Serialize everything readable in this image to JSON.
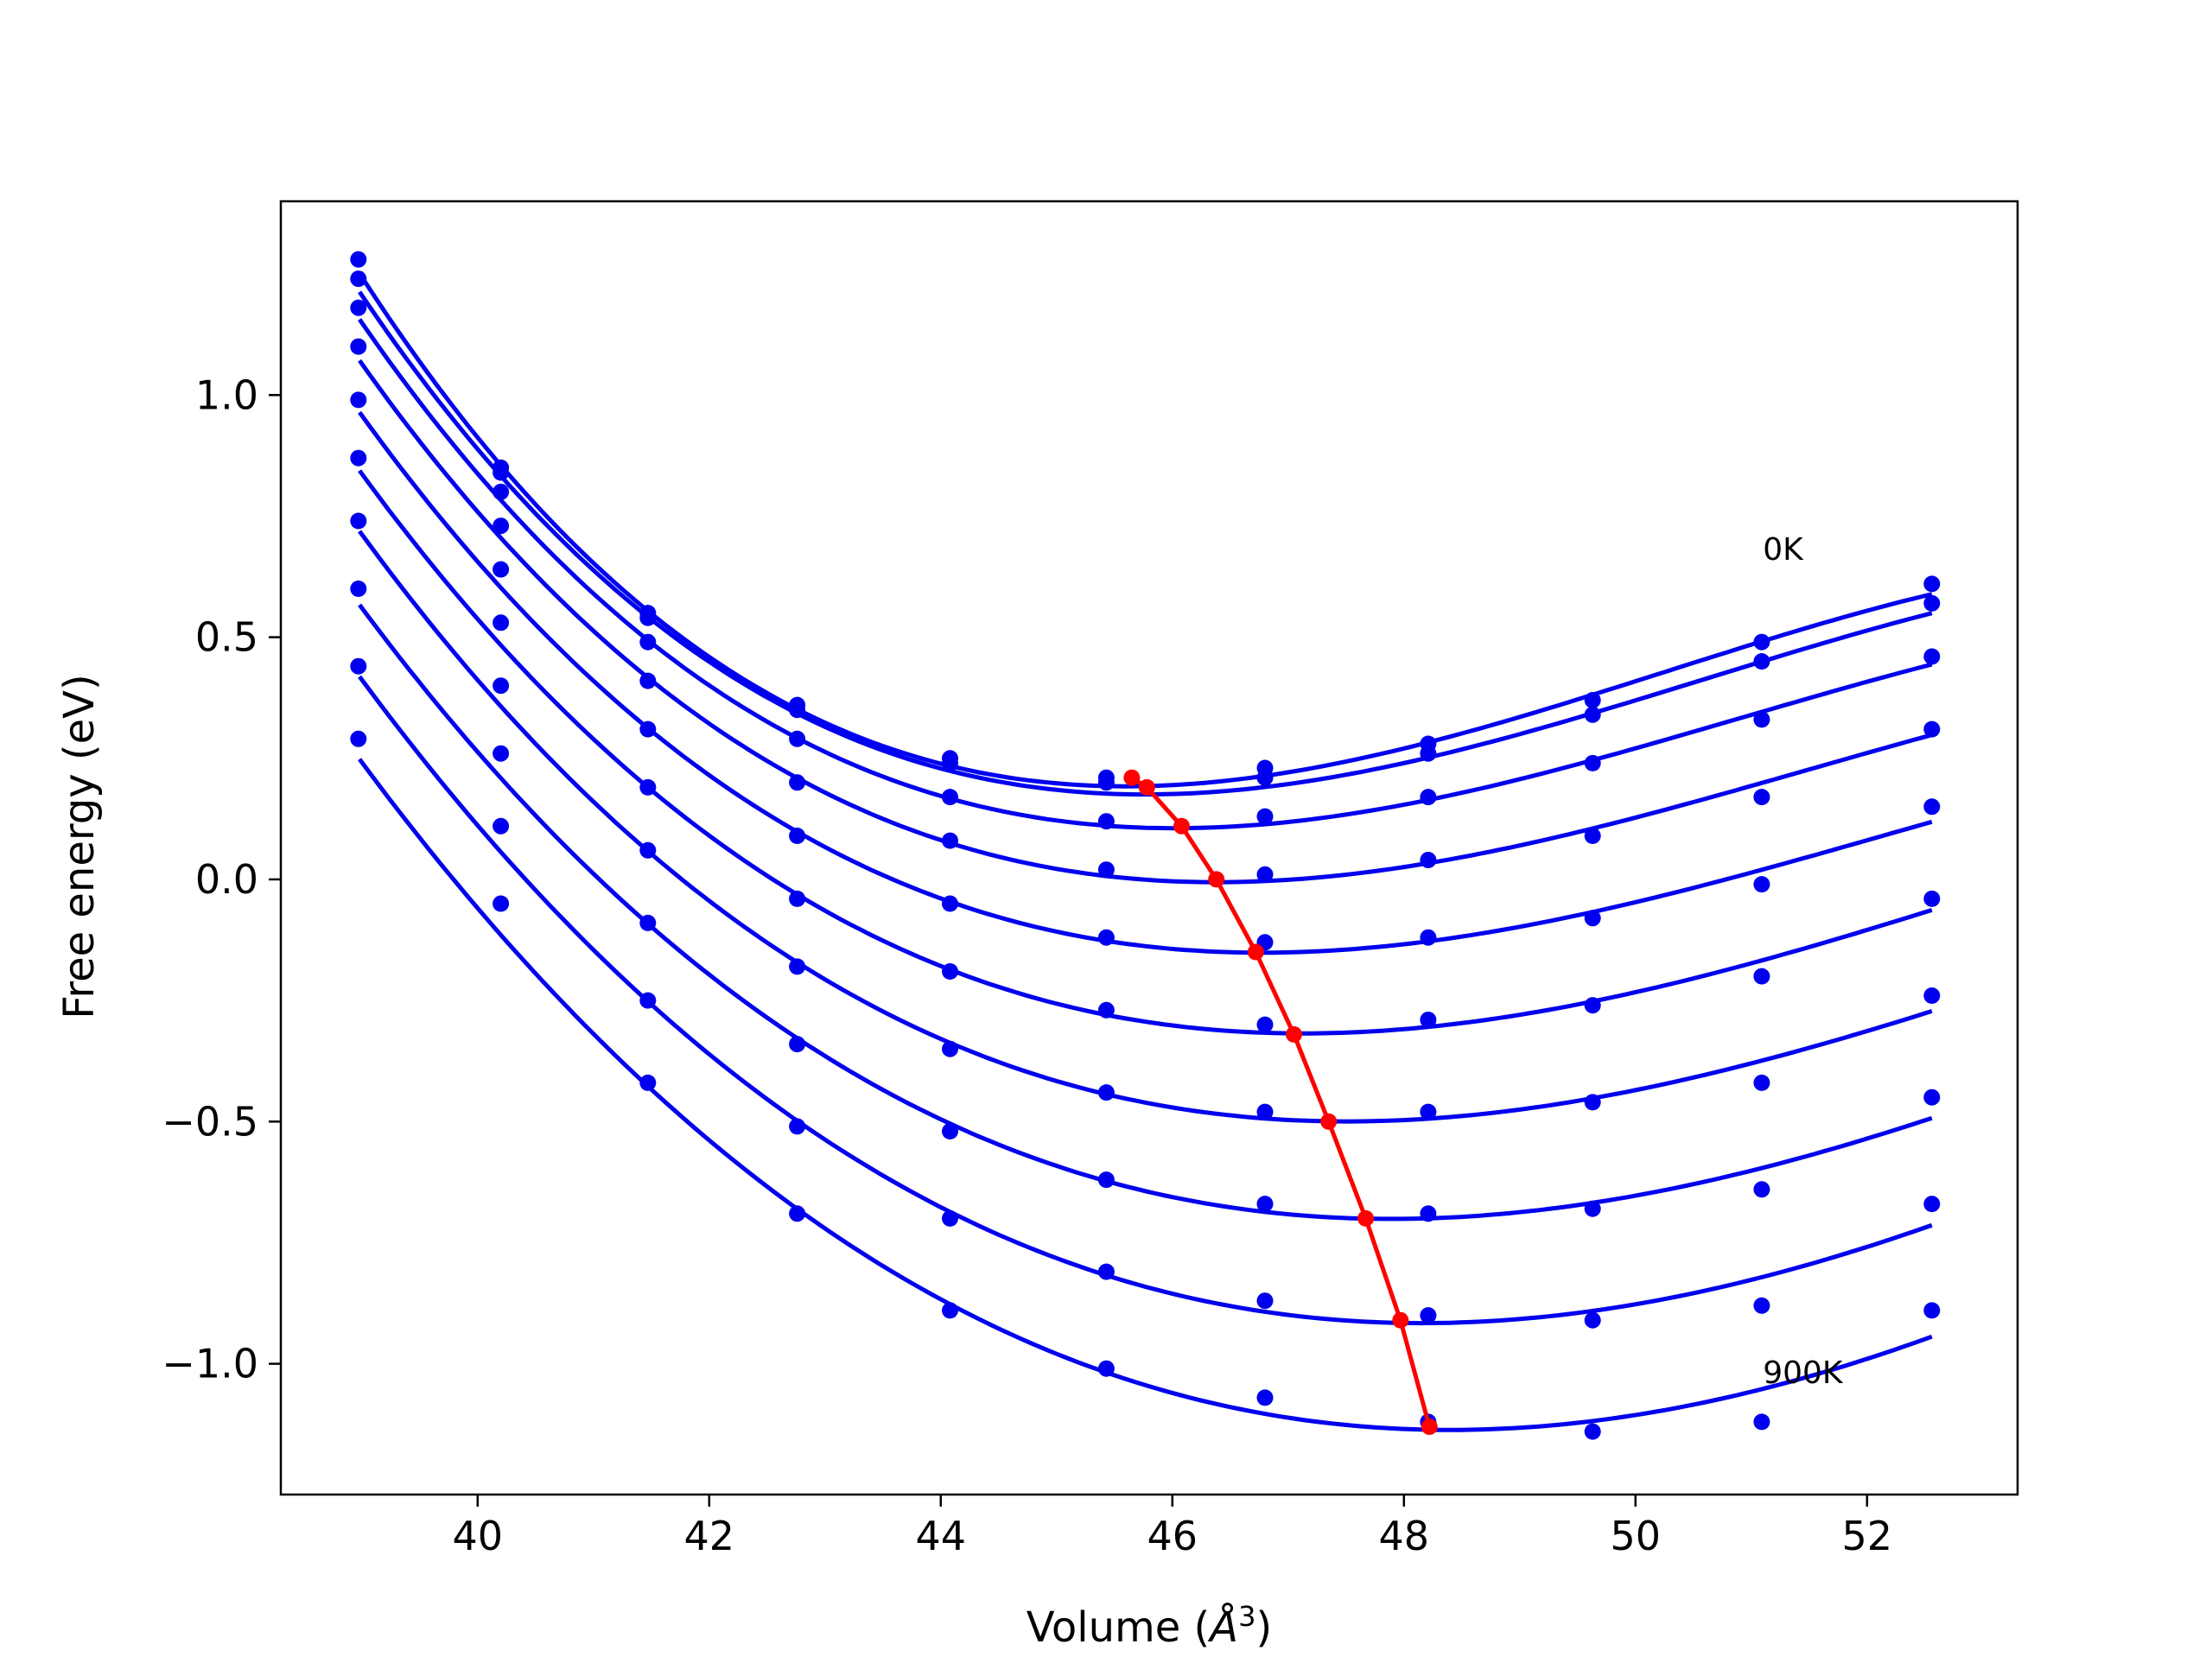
{
  "chart_data": {
    "type": "line",
    "title": "",
    "xlabel": "Volume (",
    "xlabel_symbol": "Å",
    "xlabel_power": "3",
    "xlabel_close": ")",
    "ylabel": "Free energy (eV)",
    "xlim": [
      38.3,
      53.3
    ],
    "ylim": [
      -1.27,
      1.4
    ],
    "xticks": [
      40,
      42,
      44,
      46,
      48,
      50,
      52
    ],
    "xtick_labels": [
      "40",
      "42",
      "44",
      "46",
      "48",
      "50",
      "52"
    ],
    "yticks": [
      1.0,
      0.5,
      0.0,
      -0.5,
      -1.0
    ],
    "ytick_labels": [
      "1.0",
      "0.5",
      "0.0",
      "−0.5",
      "−1.0"
    ],
    "grid": false,
    "annotations": [
      {
        "text": "0K",
        "x": 51.1,
        "y": 0.66
      },
      {
        "text": "900K",
        "x": 51.1,
        "y": -1.04
      }
    ],
    "colors": {
      "curves": "#0000ee",
      "minima": "#ff0000",
      "frame": "#000000"
    },
    "x": [
      38.97,
      40.2,
      41.47,
      42.76,
      44.08,
      45.43,
      46.8,
      48.21,
      49.63,
      51.09,
      52.56
    ],
    "series": [
      {
        "points": [
          1.28,
          0.85,
          0.55,
          0.36,
          0.25,
          0.21,
          0.23,
          0.28,
          0.37,
          0.49,
          0.61
        ],
        "fit": [
          1.27,
          0.84,
          0.54,
          0.35,
          0.24,
          0.21,
          0.22,
          0.28,
          0.37,
          0.48,
          0.6
        ]
      },
      {
        "points": [
          1.24,
          0.84,
          0.54,
          0.35,
          0.24,
          0.2,
          0.21,
          0.26,
          0.34,
          0.45,
          0.57
        ],
        "fit": [
          1.23,
          0.82,
          0.53,
          0.34,
          0.23,
          0.19,
          0.2,
          0.25,
          0.33,
          0.44,
          0.56
        ]
      },
      {
        "points": [
          1.18,
          0.8,
          0.49,
          0.29,
          0.17,
          0.12,
          0.13,
          0.17,
          0.24,
          0.33,
          0.46
        ],
        "fit": [
          1.17,
          0.77,
          0.49,
          0.29,
          0.17,
          0.12,
          0.12,
          0.16,
          0.24,
          0.34,
          0.45
        ]
      },
      {
        "points": [
          1.1,
          0.73,
          0.41,
          0.2,
          0.08,
          0.02,
          0.01,
          0.04,
          0.09,
          0.17,
          0.31
        ],
        "fit": [
          1.08,
          0.7,
          0.41,
          0.21,
          0.08,
          0.01,
          0.0,
          0.03,
          0.1,
          0.2,
          0.3
        ]
      },
      {
        "points": [
          0.99,
          0.64,
          0.31,
          0.09,
          -0.05,
          -0.12,
          -0.13,
          -0.12,
          -0.08,
          -0.01,
          0.15
        ],
        "fit": [
          0.97,
          0.6,
          0.31,
          0.1,
          -0.05,
          -0.12,
          -0.15,
          -0.13,
          -0.07,
          0.02,
          0.12
        ]
      },
      {
        "points": [
          0.87,
          0.53,
          0.19,
          -0.04,
          -0.19,
          -0.27,
          -0.3,
          -0.29,
          -0.26,
          -0.2,
          -0.04
        ],
        "fit": [
          0.85,
          0.48,
          0.19,
          -0.03,
          -0.19,
          -0.28,
          -0.31,
          -0.3,
          -0.26,
          -0.17,
          -0.06
        ]
      },
      {
        "points": [
          0.74,
          0.4,
          0.06,
          -0.18,
          -0.35,
          -0.44,
          -0.48,
          -0.48,
          -0.46,
          -0.42,
          -0.24
        ],
        "fit": [
          0.72,
          0.36,
          0.06,
          -0.17,
          -0.34,
          -0.45,
          -0.49,
          -0.49,
          -0.45,
          -0.38,
          -0.27
        ]
      },
      {
        "points": [
          0.6,
          0.26,
          -0.09,
          -0.34,
          -0.52,
          -0.62,
          -0.67,
          -0.69,
          -0.68,
          -0.64,
          -0.45
        ],
        "fit": [
          0.57,
          0.21,
          -0.09,
          -0.33,
          -0.51,
          -0.62,
          -0.68,
          -0.7,
          -0.67,
          -0.6,
          -0.49
        ]
      },
      {
        "points": [
          0.44,
          0.11,
          -0.25,
          -0.51,
          -0.7,
          -0.81,
          -0.87,
          -0.9,
          -0.91,
          -0.88,
          -0.67
        ],
        "fit": [
          0.42,
          0.06,
          -0.25,
          -0.5,
          -0.69,
          -0.82,
          -0.89,
          -0.91,
          -0.89,
          -0.83,
          -0.71
        ]
      },
      {
        "points": [
          0.29,
          -0.05,
          -0.42,
          -0.69,
          -0.89,
          -1.01,
          -1.07,
          -1.12,
          -1.14,
          -1.12,
          -0.89
        ],
        "fit": [
          0.25,
          -0.11,
          -0.43,
          -0.68,
          -0.88,
          -1.02,
          -1.1,
          -1.13,
          -1.12,
          -1.06,
          -0.94
        ]
      }
    ],
    "minima_curve": {
      "x": [
        45.65,
        45.78,
        46.08,
        46.38,
        46.72,
        47.05,
        47.35,
        47.67,
        47.97,
        48.22
      ],
      "y": [
        0.21,
        0.19,
        0.11,
        0.0,
        -0.15,
        -0.32,
        -0.5,
        -0.7,
        -0.91,
        -1.13
      ]
    }
  }
}
